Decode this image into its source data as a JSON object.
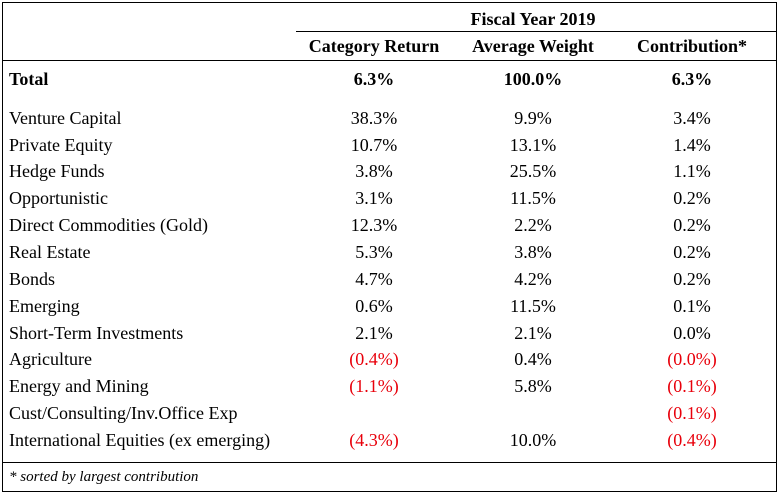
{
  "header": {
    "group_title": "Fiscal Year 2019",
    "columns": [
      "Category Return",
      "Average Weight",
      "Contribution*"
    ]
  },
  "total": {
    "label": "Total",
    "return": "6.3%",
    "weight": "100.0%",
    "contribution": "6.3%"
  },
  "rows": [
    {
      "label": "Venture Capital",
      "return": "38.3%",
      "weight": "9.9%",
      "contribution": "3.4%"
    },
    {
      "label": "Private Equity",
      "return": "10.7%",
      "weight": "13.1%",
      "contribution": "1.4%"
    },
    {
      "label": "Hedge Funds",
      "return": "3.8%",
      "weight": "25.5%",
      "contribution": "1.1%"
    },
    {
      "label": "Opportunistic",
      "return": "3.1%",
      "weight": "11.5%",
      "contribution": "0.2%"
    },
    {
      "label": "Direct Commodities (Gold)",
      "return": "12.3%",
      "weight": "2.2%",
      "contribution": "0.2%"
    },
    {
      "label": "Real Estate",
      "return": "5.3%",
      "weight": "3.8%",
      "contribution": "0.2%"
    },
    {
      "label": "Bonds",
      "return": "4.7%",
      "weight": "4.2%",
      "contribution": "0.2%"
    },
    {
      "label": "Emerging",
      "return": "0.6%",
      "weight": "11.5%",
      "contribution": "0.1%"
    },
    {
      "label": "Short-Term Investments",
      "return": "2.1%",
      "weight": "2.1%",
      "contribution": "0.0%"
    },
    {
      "label": "Agriculture",
      "return": "(0.4%)",
      "weight": "0.4%",
      "contribution": "(0.0%)"
    },
    {
      "label": "Energy and Mining",
      "return": "(1.1%)",
      "weight": "5.8%",
      "contribution": "(0.1%)"
    },
    {
      "label": "Cust/Consulting/Inv.Office Exp",
      "return": "",
      "weight": "",
      "contribution": "(0.1%)"
    },
    {
      "label": "International Equities (ex emerging)",
      "return": "(4.3%)",
      "weight": "10.0%",
      "contribution": "(0.4%)"
    }
  ],
  "footnote": "* sorted by largest contribution",
  "colors": {
    "negative": "#e8000b",
    "text": "#000000",
    "rule": "#000000"
  }
}
